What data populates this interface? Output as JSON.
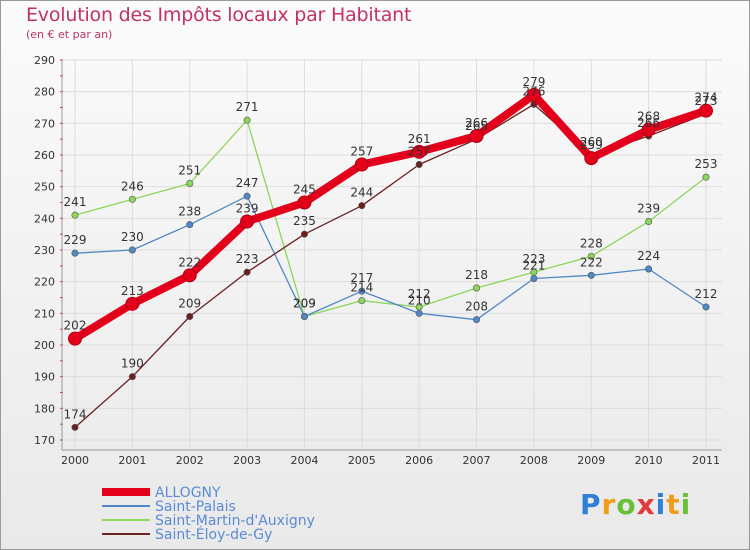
{
  "title": "Evolution des Impôts locaux par Habitant",
  "subtitle": "(en € et par an)",
  "logo_text": "Proxiti",
  "chart_data": {
    "type": "line",
    "title": "Evolution des Impôts locaux par Habitant",
    "subtitle": "(en € et par an)",
    "xlabel": "",
    "ylabel": "",
    "categories": [
      "2000",
      "2001",
      "2002",
      "2003",
      "2004",
      "2005",
      "2006",
      "2007",
      "2008",
      "2009",
      "2010",
      "2011"
    ],
    "ylim": [
      170,
      290
    ],
    "yticks": [
      170,
      180,
      190,
      200,
      210,
      220,
      230,
      240,
      250,
      260,
      270,
      280,
      290
    ],
    "grid": true,
    "legend_position": "bottom-left",
    "series": [
      {
        "name": "ALLOGNY",
        "color": "#e3001b",
        "values": [
          202,
          213,
          222,
          239,
          245,
          257,
          261,
          266,
          279,
          259,
          268,
          274
        ]
      },
      {
        "name": "Saint-Palais",
        "color": "#4f88c6",
        "values": [
          229,
          230,
          238,
          247,
          209,
          217,
          210,
          208,
          221,
          222,
          224,
          212
        ]
      },
      {
        "name": "Saint-Martin-d'Auxigny",
        "color": "#8cd65a",
        "values": [
          241,
          246,
          251,
          271,
          209,
          214,
          212,
          218,
          223,
          228,
          239,
          253
        ]
      },
      {
        "name": "Saint-Éloy-de-Gy",
        "color": "#6b1f1f",
        "values": [
          174,
          190,
          209,
          223,
          235,
          244,
          257,
          265,
          276,
          260,
          266,
          273
        ]
      }
    ]
  }
}
